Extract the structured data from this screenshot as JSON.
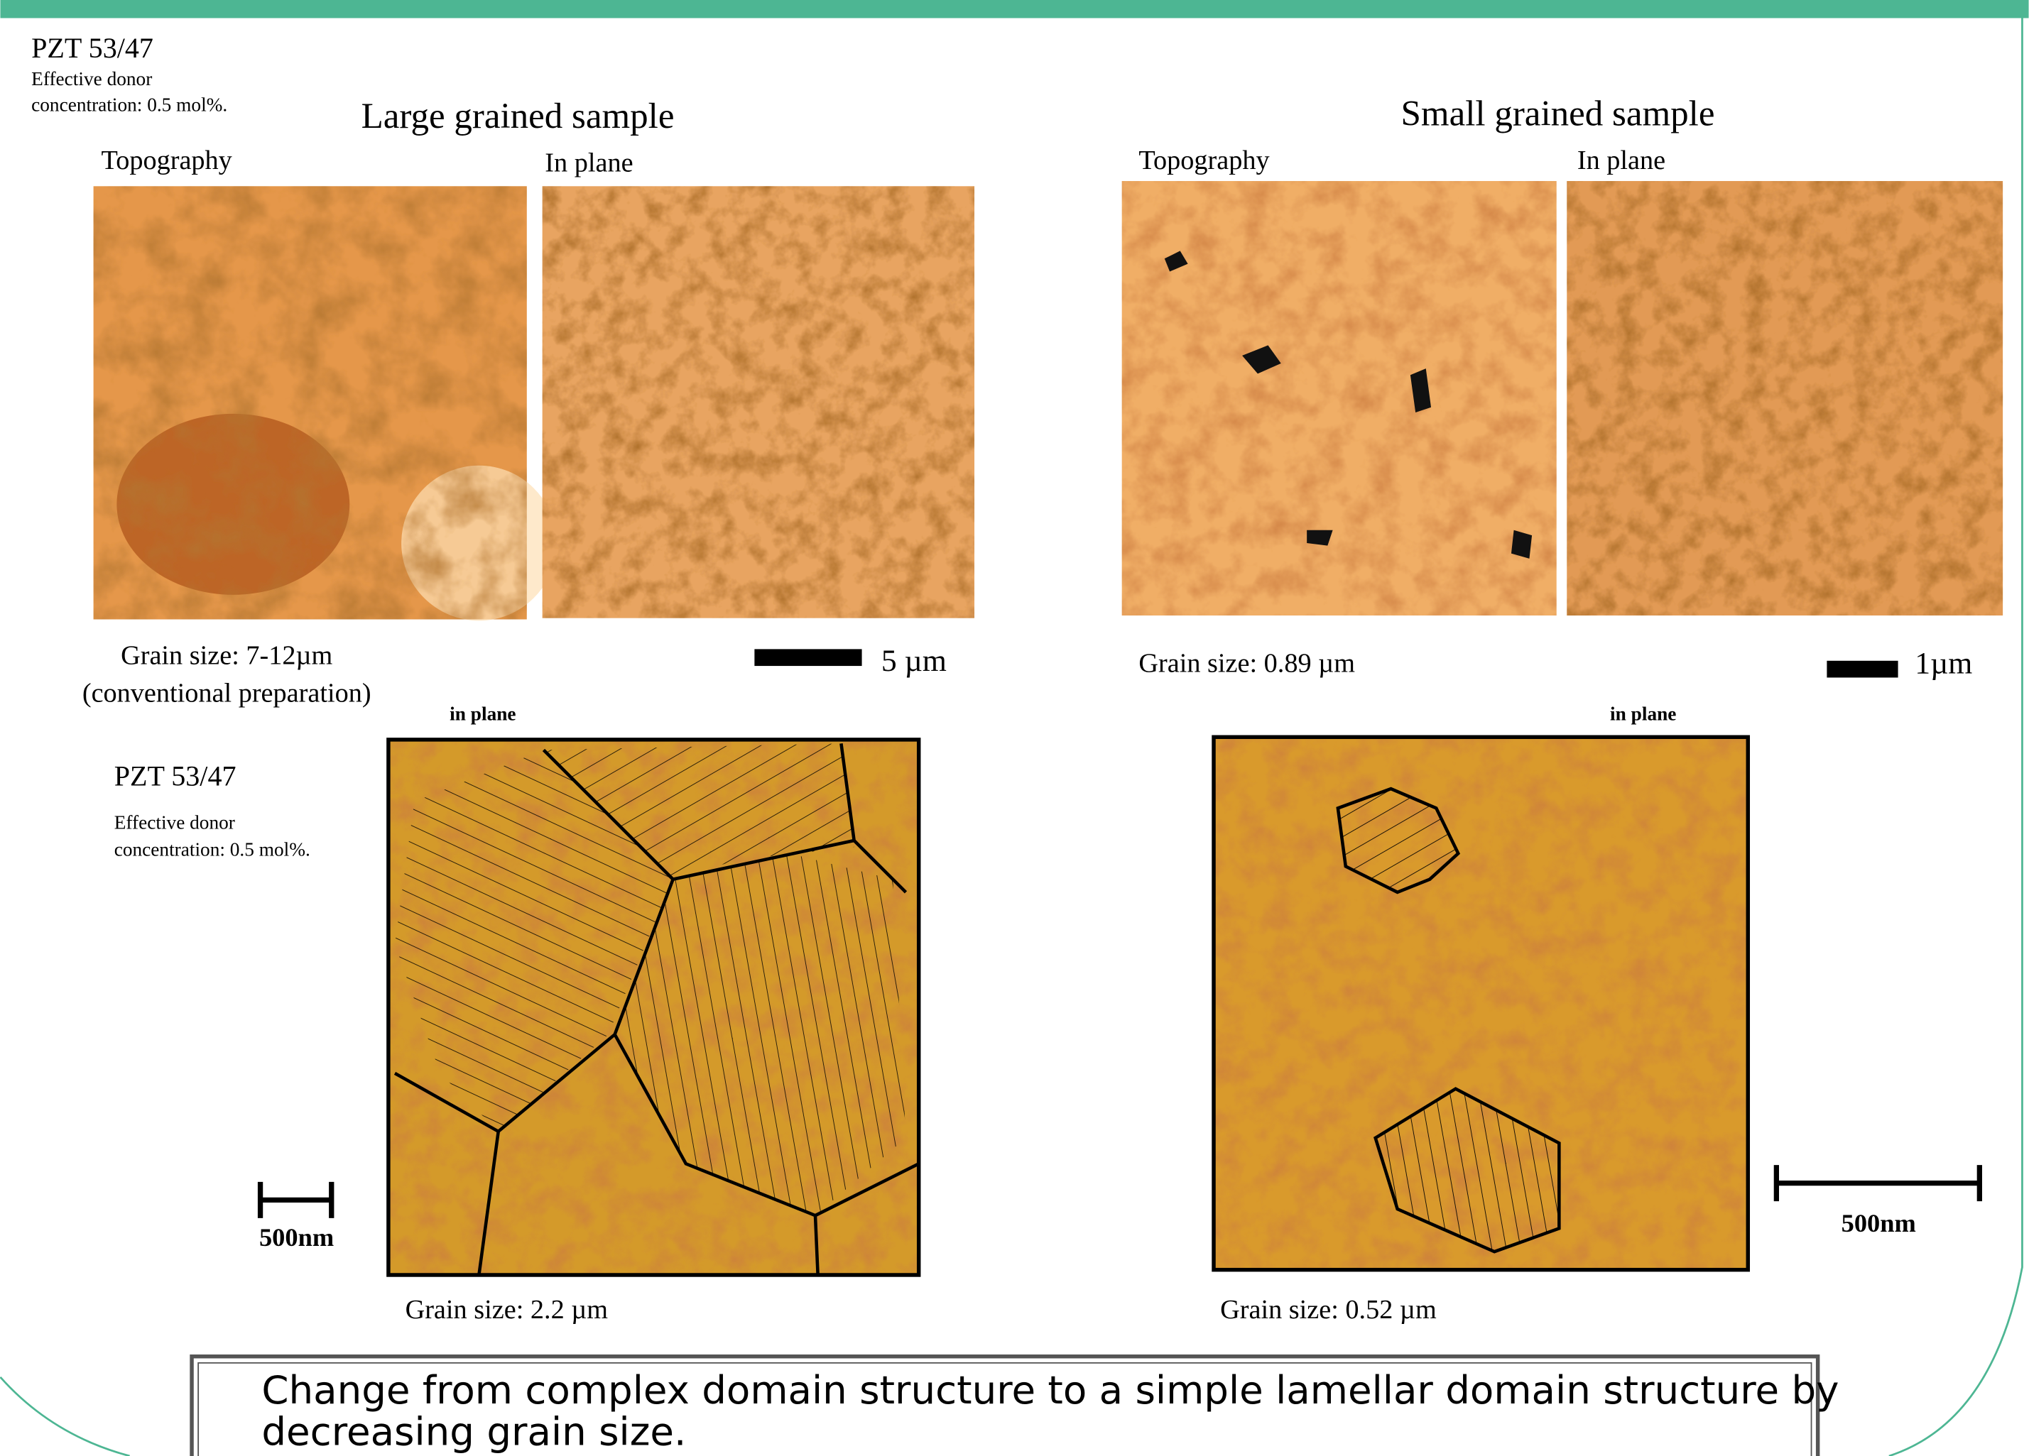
{
  "header": {
    "sample": "PZT 53/47",
    "donor": [
      "Effective donor",
      "concentration: 0.5 mol%."
    ]
  },
  "large_grained": {
    "title": "Large grained sample",
    "labels": [
      "Topography",
      "In plane"
    ],
    "grain_size": [
      "Grain size: 7-12µm",
      "(conventional preparation)"
    ],
    "scale": "5 µm"
  },
  "small_grained": {
    "title": "Small grained sample",
    "labels": [
      "Topography",
      "In plane"
    ],
    "grain_size": "Grain size: 0.89 µm",
    "scale": "1µm"
  },
  "bottom_left": {
    "caption": "in plane",
    "sample": "PZT 53/47",
    "donor": [
      "Effective donor",
      "concentration: 0.5 mol%."
    ],
    "scale": "500nm",
    "grain_size": "Grain size: 2.2 µm"
  },
  "bottom_right": {
    "caption": "in plane",
    "scale": "500nm",
    "grain_size": "Grain size: 0.52 µm"
  },
  "conclusion": [
    "Change from complex domain structure to a simple lamellar domain structure by",
    "decreasing grain size."
  ]
}
